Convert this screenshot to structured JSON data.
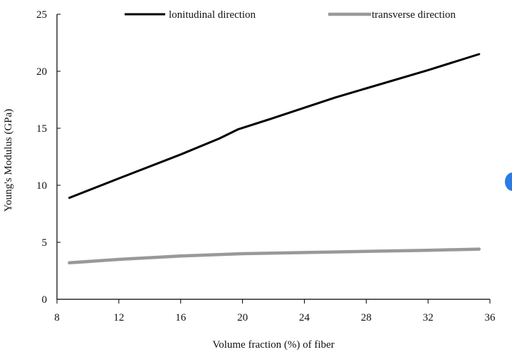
{
  "chart_data": {
    "type": "line",
    "xlabel": "Volume fraction (%) of fiber",
    "ylabel": "Young's Modulus (GPa)",
    "xlim": [
      8,
      36
    ],
    "ylim": [
      0,
      25
    ],
    "xticks": [
      8,
      12,
      16,
      20,
      24,
      28,
      32,
      36
    ],
    "yticks": [
      0,
      5,
      10,
      15,
      20,
      25
    ],
    "legend_position": "top",
    "grid": false,
    "series": [
      {
        "name": "lonitudinal direction",
        "color": "#000000",
        "x": [
          8.8,
          12,
          16,
          18.5,
          19.7,
          22,
          24,
          26,
          28,
          32,
          35.3
        ],
        "y": [
          8.9,
          10.6,
          12.7,
          14.1,
          14.9,
          15.9,
          16.8,
          17.7,
          18.5,
          20.1,
          21.5
        ]
      },
      {
        "name": "transverse direction",
        "color": "#999999",
        "x": [
          8.8,
          12,
          16,
          20,
          24,
          28,
          32,
          35.3
        ],
        "y": [
          3.2,
          3.5,
          3.8,
          4.0,
          4.1,
          4.2,
          4.3,
          4.4
        ]
      }
    ]
  }
}
